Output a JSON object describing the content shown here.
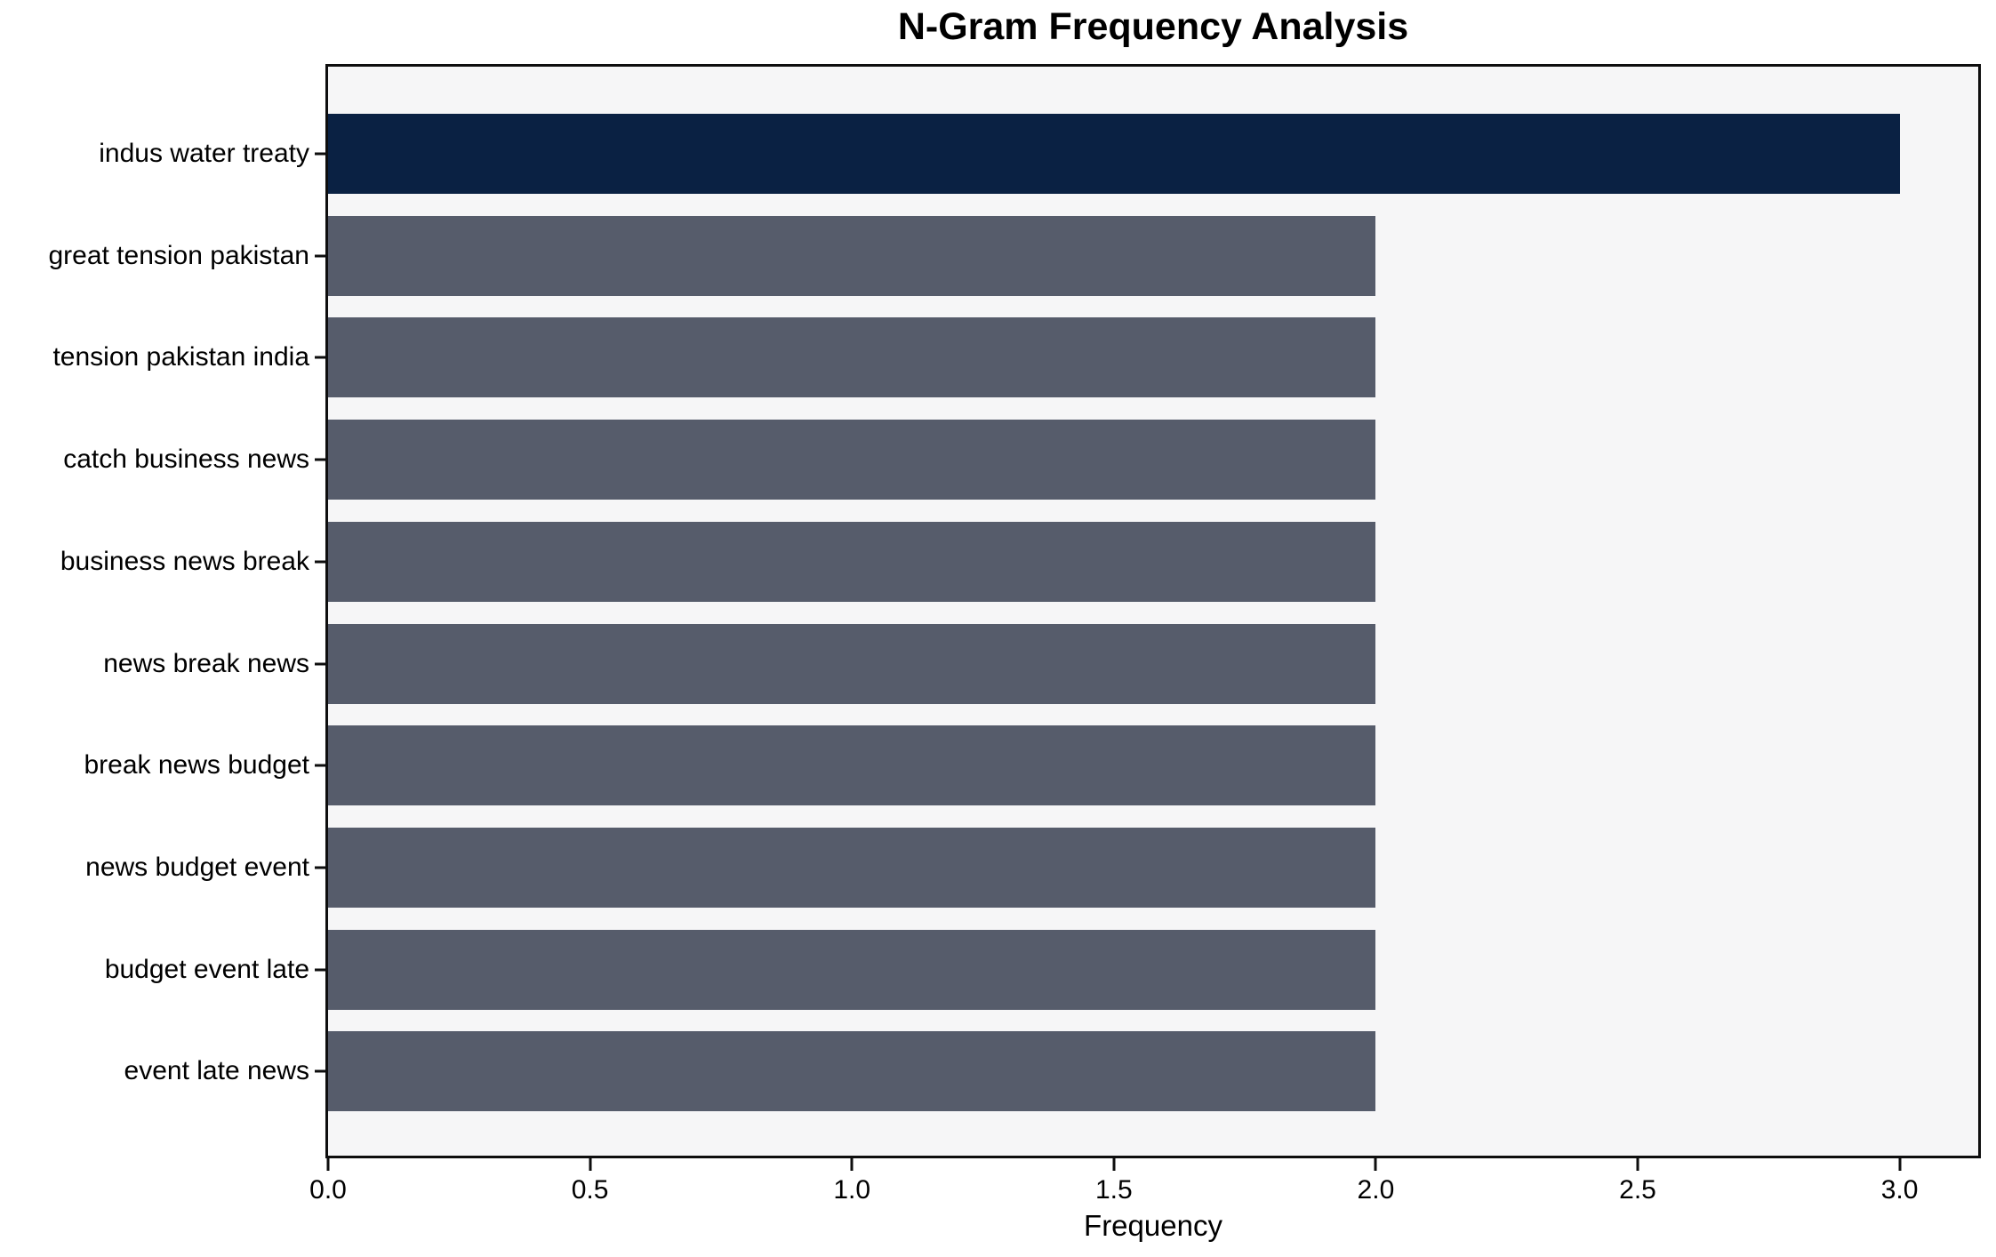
{
  "chart_data": {
    "type": "bar",
    "orientation": "horizontal",
    "title": "N-Gram Frequency Analysis",
    "xlabel": "Frequency",
    "ylabel": "",
    "categories": [
      "indus water treaty",
      "great tension pakistan",
      "tension pakistan india",
      "catch business news",
      "business news break",
      "news break news",
      "break news budget",
      "news budget event",
      "budget event late",
      "event late news"
    ],
    "values": [
      3,
      2,
      2,
      2,
      2,
      2,
      2,
      2,
      2,
      2
    ],
    "xlim": [
      0,
      3.15
    ],
    "xticks": [
      0.0,
      0.5,
      1.0,
      1.5,
      2.0,
      2.5,
      3.0
    ],
    "xtick_labels": [
      "0.0",
      "0.5",
      "1.0",
      "1.5",
      "2.0",
      "2.5",
      "3.0"
    ],
    "bar_colors": [
      "#0a2143",
      "#565c6b",
      "#565c6b",
      "#565c6b",
      "#565c6b",
      "#565c6b",
      "#565c6b",
      "#565c6b",
      "#565c6b",
      "#565c6b"
    ],
    "colors": {
      "highlight": "#0a2143",
      "default_bar": "#565c6b",
      "plot_background": "#f6f6f7",
      "figure_background": "#ffffff",
      "spine": "#0e0e0e",
      "text": "#000000"
    },
    "grid": false,
    "legend": false
  }
}
